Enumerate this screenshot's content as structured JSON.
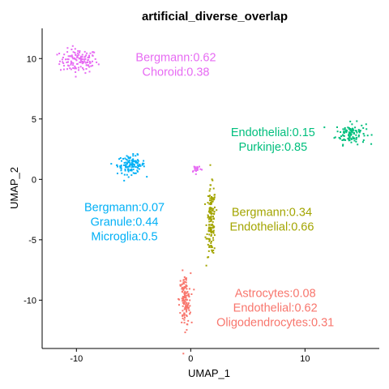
{
  "chart_data": {
    "type": "scatter",
    "title": "artificial_diverse_overlap",
    "xlabel": "UMAP_1",
    "ylabel": "UMAP_2",
    "xlim": [
      -13,
      16.5
    ],
    "ylim": [
      -14,
      12.5
    ],
    "x_ticks": [
      -10,
      0,
      10
    ],
    "y_ticks": [
      -10,
      -5,
      0,
      5,
      10
    ],
    "grid": false,
    "legend": "none",
    "clusters": [
      {
        "color": "#E76BF3",
        "center": [
          -9.8,
          9.8
        ],
        "spread": [
          1.5,
          0.9
        ],
        "n": 130,
        "label_lines": [
          "Bergmann:0.62",
          "Choroid:0.38"
        ],
        "label_pos": [
          -1.3,
          9.5
        ]
      },
      {
        "color": "#00BF7D",
        "center": [
          14.0,
          3.8
        ],
        "spread": [
          1.2,
          0.8
        ],
        "n": 110,
        "label_lines": [
          "Endothelial:0.15",
          "Purkinje:0.85"
        ],
        "label_pos": [
          7.2,
          3.3
        ]
      },
      {
        "color": "#00B0F6",
        "center": [
          -5.2,
          1.2
        ],
        "spread": [
          1.1,
          0.7
        ],
        "n": 120,
        "label_lines": [
          "Bergmann:0.07",
          "Granule:0.44",
          "Microglia:0.5"
        ],
        "label_pos": [
          -5.8,
          -3.5
        ]
      },
      {
        "color": "#A3A500",
        "center": [
          1.8,
          -3.5
        ],
        "spread": [
          0.35,
          2.6
        ],
        "n": 150,
        "label_lines": [
          "Bergmann:0.34",
          "Endothelial:0.66"
        ],
        "label_pos": [
          7.1,
          -3.3
        ]
      },
      {
        "color": "#F8766D",
        "center": [
          -0.5,
          -10.0
        ],
        "spread": [
          0.45,
          2.0
        ],
        "n": 130,
        "label_lines": [
          "Astrocytes:0.08",
          "Endothelial:0.62",
          "Oligodendrocytes:0.31"
        ],
        "label_pos": [
          7.4,
          -10.6
        ]
      }
    ],
    "extra_points": [
      {
        "color": "#E76BF3",
        "center": [
          0.5,
          0.9
        ],
        "spread": [
          0.4,
          0.3
        ],
        "n": 20
      }
    ]
  }
}
